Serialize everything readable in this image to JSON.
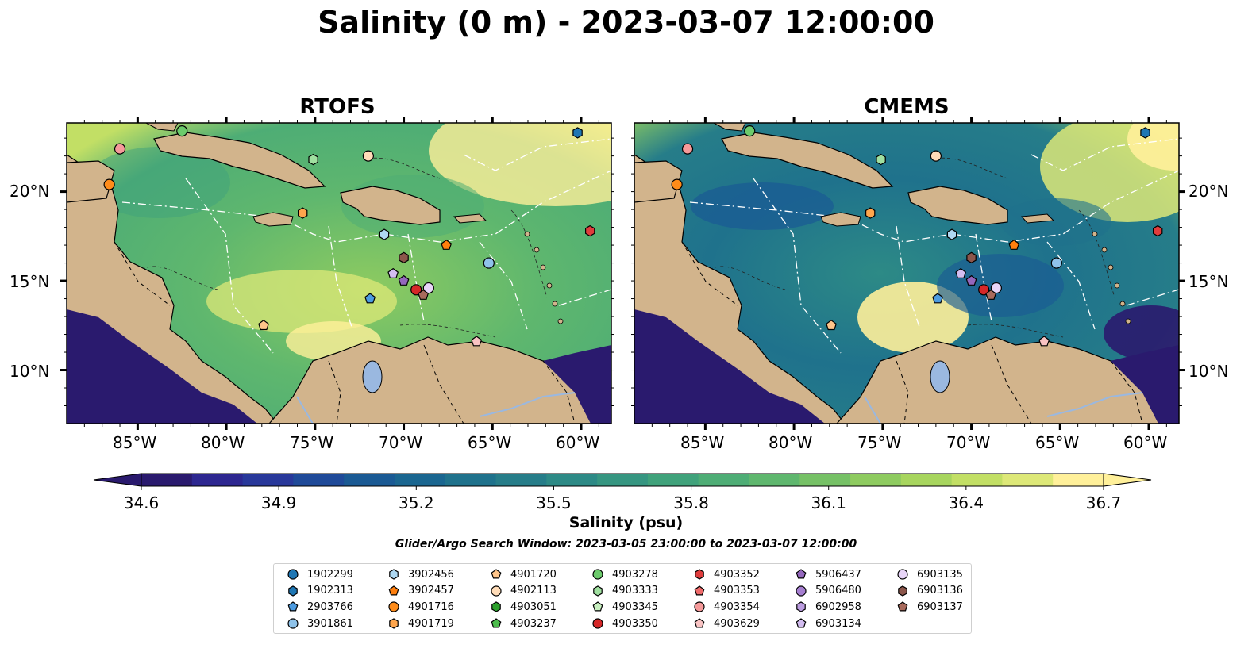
{
  "title": "Salinity (0 m) - 2023-03-07 12:00:00",
  "panels": [
    {
      "title": "RTOFS"
    },
    {
      "title": "CMEMS"
    }
  ],
  "lat_labels": [
    "20°N",
    "15°N",
    "10°N"
  ],
  "lon_labels": [
    "85°W",
    "80°W",
    "75°W",
    "70°W",
    "65°W",
    "60°W"
  ],
  "colorbar": {
    "label": "Salinity (psu)",
    "ticks": [
      "34.6",
      "34.9",
      "35.2",
      "35.5",
      "35.8",
      "36.1",
      "36.4",
      "36.7"
    ],
    "colors": [
      "#2a1a6e",
      "#2d2790",
      "#28389a",
      "#1f4a99",
      "#1a5a94",
      "#1a6690",
      "#1f728c",
      "#267d89",
      "#2d8a86",
      "#369681",
      "#40a27b",
      "#4ead75",
      "#5fb76e",
      "#76c166",
      "#8ecb60",
      "#a7d55e",
      "#c2df65",
      "#dde878",
      "#fff09a"
    ]
  },
  "search_window": "Glider/Argo Search Window: 2023-03-05 23:00:00 to 2023-03-07 12:00:00",
  "legend": [
    {
      "label": "1902299",
      "marker": "circle",
      "color": "#1f77b4"
    },
    {
      "label": "1902313",
      "marker": "hexagon",
      "color": "#1f77b4"
    },
    {
      "label": "2903766",
      "marker": "pentagon",
      "color": "#4c9be0"
    },
    {
      "label": "3901861",
      "marker": "circle",
      "color": "#8fc3ea"
    },
    {
      "label": "3902456",
      "marker": "hexagon",
      "color": "#aed8f2"
    },
    {
      "label": "3902457",
      "marker": "pentagon",
      "color": "#ff7f0e"
    },
    {
      "label": "4901716",
      "marker": "circle",
      "color": "#ff8c1a"
    },
    {
      "label": "4901719",
      "marker": "hexagon",
      "color": "#ffa64d"
    },
    {
      "label": "4901720",
      "marker": "pentagon",
      "color": "#ffc58a"
    },
    {
      "label": "4902113",
      "marker": "circle",
      "color": "#ffdcb8"
    },
    {
      "label": "4903051",
      "marker": "hexagon",
      "color": "#2ca02c"
    },
    {
      "label": "4903237",
      "marker": "pentagon",
      "color": "#4cbc4c"
    },
    {
      "label": "4903278",
      "marker": "circle",
      "color": "#6ccb6c"
    },
    {
      "label": "4903333",
      "marker": "hexagon",
      "color": "#a0e0a0"
    },
    {
      "label": "4903345",
      "marker": "pentagon",
      "color": "#c8f0c0"
    },
    {
      "label": "4903350",
      "marker": "circle",
      "color": "#d62728"
    },
    {
      "label": "4903352",
      "marker": "hexagon",
      "color": "#e03c3c"
    },
    {
      "label": "4903353",
      "marker": "pentagon",
      "color": "#ef6a6a"
    },
    {
      "label": "4903354",
      "marker": "circle",
      "color": "#f59a9a"
    },
    {
      "label": "4903629",
      "marker": "pentagon",
      "color": "#f9c3c3"
    },
    {
      "label": "5906437",
      "marker": "pentagon",
      "color": "#9467bd"
    },
    {
      "label": "5906480",
      "marker": "circle",
      "color": "#a67fd0"
    },
    {
      "label": "6902958",
      "marker": "hexagon",
      "color": "#bc9de0"
    },
    {
      "label": "6903134",
      "marker": "pentagon",
      "color": "#d3bdf0"
    },
    {
      "label": "6903135",
      "marker": "circle",
      "color": "#e8d5f8"
    },
    {
      "label": "6903136",
      "marker": "hexagon",
      "color": "#8c564b"
    },
    {
      "label": "6903137",
      "marker": "pentagon",
      "color": "#a86a5c"
    }
  ],
  "floats": [
    {
      "id": "1902313",
      "lon": -60.2,
      "lat": 23.3
    },
    {
      "id": "4903333",
      "lon": -75.1,
      "lat": 21.8
    },
    {
      "id": "4903278",
      "lon": -82.5,
      "lat": 23.4
    },
    {
      "id": "4903354",
      "lon": -86.0,
      "lat": 22.4
    },
    {
      "id": "4901716",
      "lon": -86.6,
      "lat": 20.4
    },
    {
      "id": "4901719",
      "lon": -75.7,
      "lat": 18.8
    },
    {
      "id": "4902113",
      "lon": -72.0,
      "lat": 22.0
    },
    {
      "id": "3902456",
      "lon": -71.1,
      "lat": 17.6
    },
    {
      "id": "3902457",
      "lon": -67.6,
      "lat": 17.0
    },
    {
      "id": "3901861",
      "lon": -65.2,
      "lat": 16.0
    },
    {
      "id": "6903136",
      "lon": -70.0,
      "lat": 16.3
    },
    {
      "id": "6903134",
      "lon": -70.6,
      "lat": 15.4
    },
    {
      "id": "5906437",
      "lon": -70.0,
      "lat": 15.0
    },
    {
      "id": "6903135",
      "lon": -68.6,
      "lat": 14.6
    },
    {
      "id": "4903350",
      "lon": -69.3,
      "lat": 14.5
    },
    {
      "id": "6903137",
      "lon": -68.9,
      "lat": 14.2
    },
    {
      "id": "2903766",
      "lon": -71.9,
      "lat": 14.0
    },
    {
      "id": "4901720",
      "lon": -77.9,
      "lat": 12.5
    },
    {
      "id": "4903629",
      "lon": -65.9,
      "lat": 11.6
    },
    {
      "id": "4903352",
      "lon": -59.5,
      "lat": 17.8
    }
  ]
}
